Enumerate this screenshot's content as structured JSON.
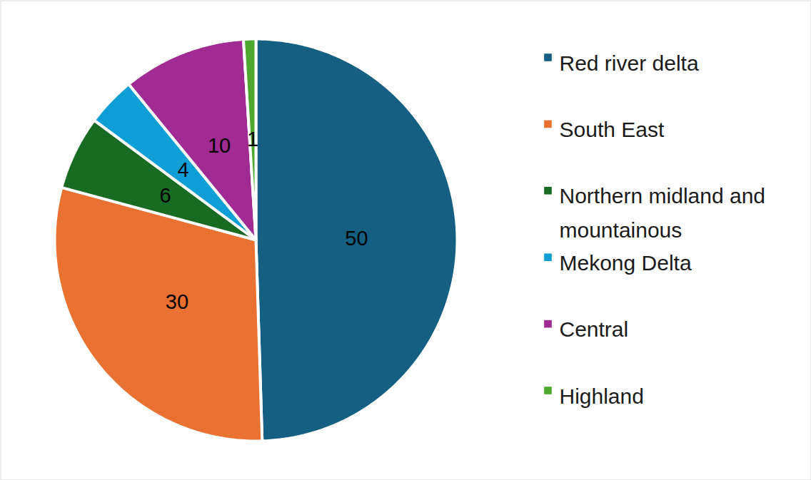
{
  "chart_data": {
    "type": "pie",
    "categories": [
      "Red river delta",
      "South East",
      "Northern midland and mountainous",
      "Mekong Delta",
      "Central",
      "Highland"
    ],
    "values": [
      50,
      30,
      6,
      4,
      10,
      1
    ],
    "colors": [
      "#156082",
      "#e97132",
      "#196b24",
      "#0f9ed5",
      "#a02b93",
      "#4ea72e"
    ],
    "data_labels": true,
    "legend": "right"
  }
}
